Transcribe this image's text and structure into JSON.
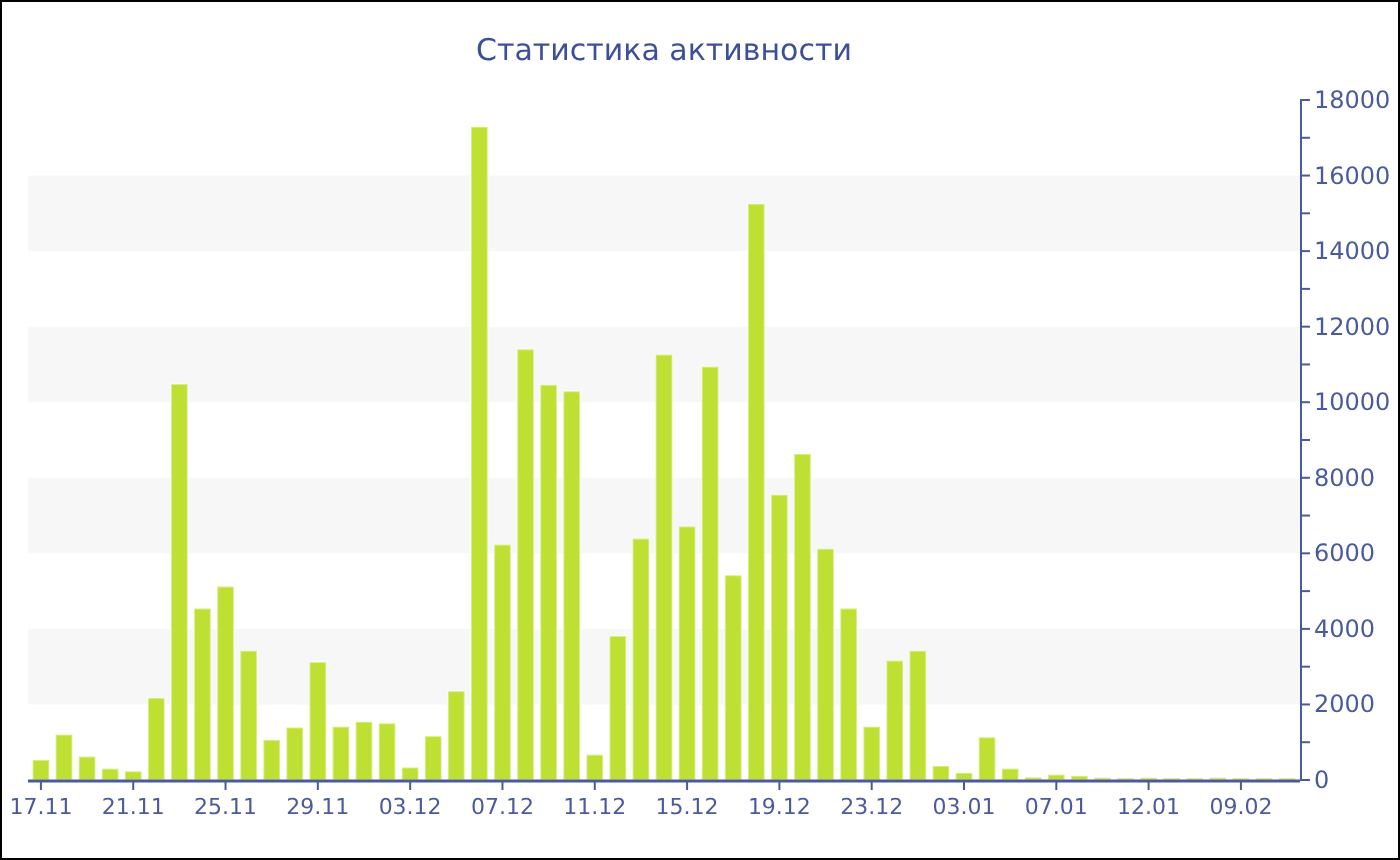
{
  "chart_data": {
    "type": "bar",
    "title": "Статистика активности",
    "categories": [
      "17.11",
      null,
      null,
      null,
      "21.11",
      null,
      null,
      null,
      "25.11",
      null,
      null,
      null,
      "29.11",
      null,
      null,
      null,
      "03.12",
      null,
      null,
      null,
      "07.12",
      null,
      null,
      null,
      "11.12",
      null,
      null,
      null,
      "15.12",
      null,
      null,
      null,
      "19.12",
      null,
      null,
      null,
      "23.12",
      null,
      null,
      null,
      "03.01",
      null,
      null,
      null,
      "07.01",
      null,
      null,
      null,
      "12.01",
      null,
      null,
      null,
      "09.02",
      null,
      null
    ],
    "values": [
      530,
      1200,
      620,
      300,
      230,
      2170,
      10480,
      4540,
      5120,
      3420,
      1060,
      1390,
      3120,
      1410,
      1540,
      1500,
      330,
      1160,
      2350,
      17290,
      6230,
      11400,
      10460,
      10290,
      670,
      3810,
      6390,
      11260,
      6710,
      10940,
      5420,
      15250,
      7550,
      8630,
      6120,
      4540,
      1410,
      3160,
      3420,
      370,
      190,
      1130,
      300,
      70,
      140,
      110,
      60,
      50,
      60,
      50,
      50,
      60,
      50,
      50,
      50
    ],
    "color": "#bde032",
    "ylim": [
      0,
      18000
    ],
    "yticks": [
      0,
      {
        "value": 1000,
        "label": null
      },
      2000,
      {
        "value": 3000,
        "label": null
      },
      4000,
      {
        "value": 5000,
        "label": null
      },
      6000,
      {
        "value": 7000,
        "label": null
      },
      8000,
      {
        "value": 9000,
        "label": null
      },
      10000,
      {
        "value": 11000,
        "label": null
      },
      12000,
      {
        "value": 13000,
        "label": null
      },
      14000,
      {
        "value": 15000,
        "label": null
      },
      16000,
      {
        "value": 17000,
        "label": null
      },
      18000
    ],
    "bands": [
      {
        "axis": "y",
        "from": 2000,
        "to": 4000,
        "color": "#f7f7f7"
      },
      {
        "axis": "y",
        "from": 6000,
        "to": 8000,
        "color": "#f7f7f7"
      },
      {
        "axis": "y",
        "from": 10000,
        "to": 12000,
        "color": "#f7f7f7"
      },
      {
        "axis": "y",
        "from": 14000,
        "to": 16000,
        "color": "#f7f7f7"
      }
    ],
    "grid": false
  }
}
